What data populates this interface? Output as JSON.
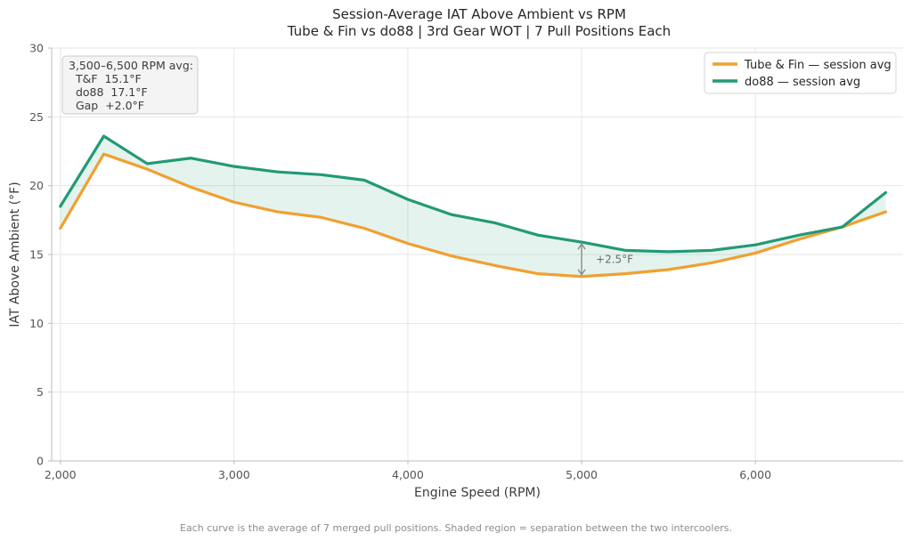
{
  "chart_data": {
    "type": "line",
    "title": "Session-Average IAT Above Ambient vs RPM",
    "subtitle": "Tube & Fin vs do88 | 3rd Gear WOT | 7 Pull Positions Each",
    "xlabel": "Engine Speed (RPM)",
    "ylabel": "IAT Above Ambient (°F)",
    "xlim": [
      1950,
      6850
    ],
    "ylim": [
      0,
      30
    ],
    "x_ticks": [
      2000,
      3000,
      4000,
      5000,
      6000
    ],
    "x_tick_labels": [
      "2,000",
      "3,000",
      "4,000",
      "5,000",
      "6,000"
    ],
    "y_ticks": [
      0,
      5,
      10,
      15,
      20,
      25,
      30
    ],
    "y_tick_labels": [
      "0",
      "5",
      "10",
      "15",
      "20",
      "25",
      "30"
    ],
    "grid": true,
    "legend_position": "top-right",
    "x": [
      2000,
      2250,
      2500,
      2750,
      3000,
      3250,
      3500,
      3750,
      4000,
      4250,
      4500,
      4750,
      5000,
      5250,
      5500,
      5750,
      6000,
      6250,
      6500,
      6750
    ],
    "series": [
      {
        "name": "Tube & Fin — session avg",
        "color": "#f0a030",
        "values": [
          16.9,
          22.3,
          21.2,
          19.9,
          18.8,
          18.1,
          17.7,
          16.9,
          15.8,
          14.9,
          14.2,
          13.6,
          13.4,
          13.6,
          13.9,
          14.4,
          15.1,
          16.1,
          17.0,
          18.1
        ]
      },
      {
        "name": "do88 — session avg",
        "color": "#229977",
        "values": [
          18.5,
          23.6,
          21.6,
          22.0,
          21.4,
          21.0,
          20.8,
          20.4,
          19.0,
          17.9,
          17.3,
          16.4,
          15.9,
          15.3,
          15.2,
          15.3,
          15.7,
          16.4,
          17.0,
          19.5
        ]
      }
    ],
    "fill_between": {
      "color": "#229977",
      "opacity": 0.12
    },
    "annotation": {
      "x": 5000,
      "y_from": 13.4,
      "y_to": 15.9,
      "text": "+2.5°F"
    },
    "stats_box": {
      "lines": [
        "3,500–6,500 RPM avg:",
        "  T&F  15.1°F",
        "  do88  17.1°F",
        "  Gap  +2.0°F"
      ]
    },
    "footer": "Each curve is the average of 7 merged pull positions. Shaded region = separation between the two intercoolers."
  }
}
